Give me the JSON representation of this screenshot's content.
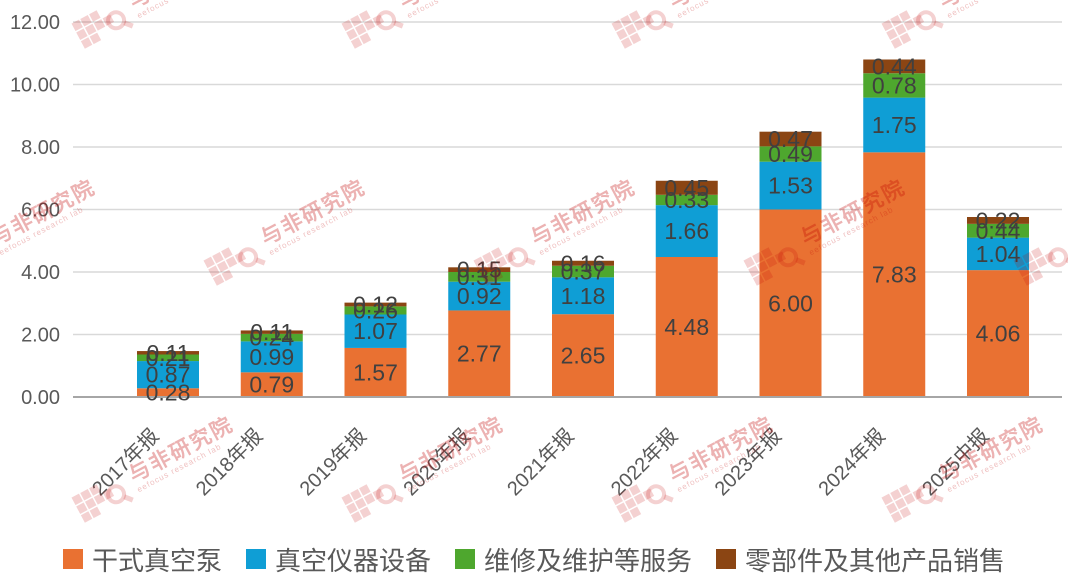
{
  "chart_data": {
    "type": "bar",
    "stacked": true,
    "title": "",
    "xlabel": "",
    "ylabel": "",
    "categories": [
      "2017年报",
      "2018年报",
      "2019年报",
      "2020年报",
      "2021年报",
      "2022年报",
      "2023年报",
      "2024年报",
      "2025中报"
    ],
    "series": [
      {
        "name": "干式真空泵",
        "color": "#E97132",
        "values": [
          0.28,
          0.79,
          1.57,
          2.77,
          2.65,
          4.48,
          6.0,
          7.83,
          4.06
        ]
      },
      {
        "name": "真空仪器设备",
        "color": "#0F9ED5",
        "values": [
          0.87,
          0.99,
          1.07,
          0.92,
          1.18,
          1.66,
          1.53,
          1.75,
          1.04
        ]
      },
      {
        "name": "维修及维护等服务",
        "color": "#4EA72E",
        "values": [
          0.21,
          0.24,
          0.26,
          0.31,
          0.37,
          0.33,
          0.49,
          0.78,
          0.44
        ]
      },
      {
        "name": "零部件及其他产品销售",
        "color": "#8B4513",
        "values": [
          0.11,
          0.11,
          0.12,
          0.15,
          0.16,
          0.45,
          0.47,
          0.44,
          0.22
        ]
      }
    ],
    "ylim": [
      0,
      12
    ],
    "ytick_step": 2,
    "ytick_labels": [
      "0.00",
      "2.00",
      "4.00",
      "6.00",
      "8.00",
      "10.00",
      "12.00"
    ],
    "grid": true,
    "value_labels": true,
    "value_label_format": "0.00",
    "legend_position": "bottom"
  },
  "watermark": {
    "text": "与非研究院",
    "subtext": "eefocus research lab",
    "color": "#C00000"
  },
  "colors": {
    "background": "#FFFFFF",
    "gridline": "#D9D9D9",
    "axis_line": "#A6A6A6",
    "tick_text": "#595959",
    "value_label_text": "#404040",
    "legend_text": "#595959"
  }
}
